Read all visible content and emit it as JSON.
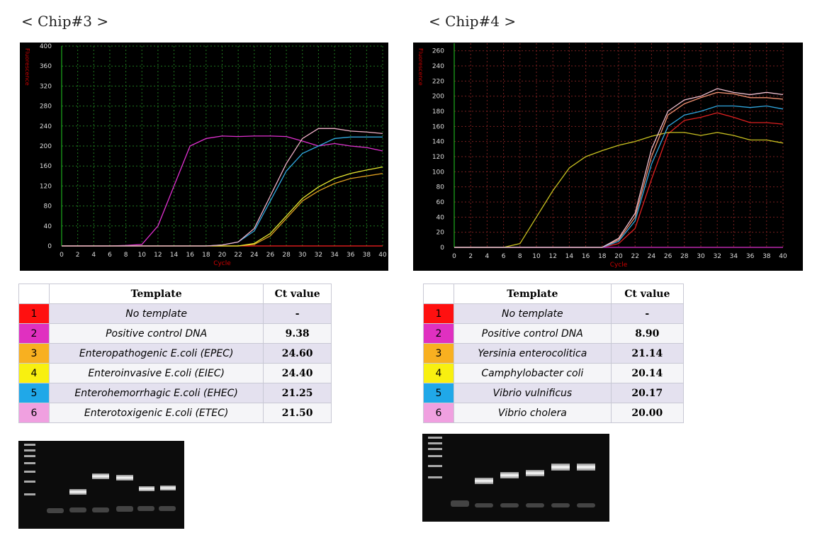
{
  "chart_data": [
    {
      "type": "line",
      "title": "< Chip#3 >",
      "x_label": "Cycle",
      "y_label": "Fluorescence",
      "x": [
        0,
        2,
        4,
        6,
        8,
        10,
        12,
        14,
        16,
        18,
        20,
        22,
        24,
        26,
        28,
        30,
        32,
        34,
        36,
        38,
        40
      ],
      "xlim": [
        0,
        40
      ],
      "xticks": [
        0,
        2,
        4,
        6,
        8,
        10,
        12,
        14,
        16,
        18,
        20,
        22,
        24,
        26,
        28,
        30,
        32,
        34,
        36,
        38,
        40
      ],
      "ylim": [
        0,
        400
      ],
      "yticks": [
        0,
        40,
        80,
        120,
        160,
        200,
        240,
        280,
        320,
        360,
        400
      ],
      "grid": true,
      "series": [
        {
          "color": "#ff2020",
          "values": [
            0,
            0,
            0,
            0,
            0,
            0,
            0,
            0,
            0,
            0,
            0,
            0,
            0,
            0,
            0,
            0,
            0,
            0,
            0,
            0,
            0
          ]
        },
        {
          "color": "#e030d0",
          "values": [
            0,
            0,
            0,
            0,
            1,
            3,
            40,
            120,
            200,
            215,
            220,
            219,
            220,
            220,
            219,
            210,
            200,
            205,
            200,
            197,
            190
          ]
        },
        {
          "color": "#e0a020",
          "values": [
            0,
            0,
            0,
            0,
            0,
            0,
            0,
            0,
            0,
            0,
            0,
            0,
            3,
            20,
            55,
            90,
            110,
            125,
            135,
            140,
            145
          ]
        },
        {
          "color": "#e8e830",
          "values": [
            0,
            0,
            0,
            0,
            0,
            0,
            0,
            0,
            0,
            0,
            0,
            0,
            5,
            25,
            60,
            95,
            118,
            135,
            145,
            152,
            158
          ]
        },
        {
          "color": "#30a8e0",
          "values": [
            0,
            0,
            0,
            0,
            0,
            0,
            0,
            0,
            0,
            0,
            2,
            8,
            30,
            90,
            150,
            185,
            200,
            215,
            218,
            218,
            218
          ]
        },
        {
          "color": "#f0b0c8",
          "values": [
            0,
            0,
            0,
            0,
            0,
            0,
            0,
            0,
            0,
            0,
            2,
            8,
            35,
            100,
            165,
            215,
            235,
            235,
            230,
            228,
            225
          ]
        }
      ]
    },
    {
      "type": "line",
      "title": "< Chip#4 >",
      "x_label": "Cycle",
      "y_label": "Fluorescence",
      "x": [
        0,
        2,
        4,
        6,
        8,
        10,
        12,
        14,
        16,
        18,
        20,
        22,
        24,
        26,
        28,
        30,
        32,
        34,
        36,
        38,
        40
      ],
      "xlim": [
        0,
        40
      ],
      "xticks": [
        0,
        2,
        4,
        6,
        8,
        10,
        12,
        14,
        16,
        18,
        20,
        22,
        24,
        26,
        28,
        30,
        32,
        34,
        36,
        38,
        40
      ],
      "ylim": [
        0,
        270
      ],
      "yticks": [
        0,
        20,
        40,
        60,
        80,
        100,
        120,
        140,
        160,
        180,
        200,
        220,
        240,
        260
      ],
      "grid": true,
      "series": [
        {
          "color": "#e02020",
          "values": [
            0,
            0,
            0,
            0,
            0,
            0,
            0,
            0,
            0,
            0,
            5,
            25,
            90,
            150,
            168,
            172,
            178,
            172,
            165,
            165,
            163
          ]
        },
        {
          "color": "#e030d0",
          "values": [
            0,
            0,
            0,
            0,
            0,
            0,
            0,
            0,
            0,
            0,
            0,
            0,
            0,
            0,
            0,
            0,
            0,
            0,
            0,
            0,
            0
          ]
        },
        {
          "color": "#f09070",
          "values": [
            0,
            0,
            0,
            0,
            0,
            0,
            0,
            0,
            0,
            0,
            10,
            40,
            120,
            175,
            190,
            198,
            205,
            203,
            198,
            198,
            196
          ]
        },
        {
          "color": "#c8c020",
          "values": [
            0,
            0,
            0,
            0,
            5,
            40,
            75,
            105,
            120,
            128,
            135,
            140,
            147,
            152,
            152,
            148,
            152,
            148,
            142,
            142,
            138
          ]
        },
        {
          "color": "#30a8e0",
          "values": [
            0,
            0,
            0,
            0,
            0,
            0,
            0,
            0,
            0,
            0,
            8,
            35,
            110,
            160,
            175,
            180,
            187,
            187,
            185,
            187,
            183
          ]
        },
        {
          "color": "#f0c0d0",
          "values": [
            0,
            0,
            0,
            0,
            0,
            0,
            0,
            0,
            0,
            0,
            12,
            45,
            130,
            180,
            195,
            200,
            210,
            205,
            202,
            205,
            202
          ]
        }
      ]
    }
  ],
  "tables": [
    {
      "header": [
        "Template",
        "Ct value"
      ],
      "rows": [
        {
          "num": "1",
          "color": "#ff1010",
          "template": "No template",
          "ct": "-"
        },
        {
          "num": "2",
          "color": "#e030c0",
          "template": "Positive control DNA",
          "ct": "9.38"
        },
        {
          "num": "3",
          "color": "#f8b020",
          "template": "Enteropathogenic E.coli (EPEC)",
          "ct": "24.60"
        },
        {
          "num": "4",
          "color": "#f8f010",
          "template": "Enteroinvasive E.coli  (EIEC)",
          "ct": "24.40"
        },
        {
          "num": "5",
          "color": "#20a8e8",
          "template": "Enterohemorrhagic E.coli  (EHEC)",
          "ct": "21.25"
        },
        {
          "num": "6",
          "color": "#f0a0e0",
          "template": "Enterotoxigenic E.coli (ETEC)",
          "ct": "21.50"
        }
      ]
    },
    {
      "header": [
        "Template",
        "Ct value"
      ],
      "rows": [
        {
          "num": "1",
          "color": "#ff1010",
          "template": "No template",
          "ct": "-"
        },
        {
          "num": "2",
          "color": "#e030c0",
          "template": "Positive control DNA",
          "ct": "8.90"
        },
        {
          "num": "3",
          "color": "#f8b020",
          "template": "Yersinia enterocolitica",
          "ct": "21.14"
        },
        {
          "num": "4",
          "color": "#f8f010",
          "template": "Camphylobacter coli",
          "ct": "20.14"
        },
        {
          "num": "5",
          "color": "#20a8e8",
          "template": "Vibrio vulnificus",
          "ct": "20.17"
        },
        {
          "num": "6",
          "color": "#f0a0e0",
          "template": "Vibrio cholera",
          "ct": "20.00"
        }
      ]
    }
  ]
}
